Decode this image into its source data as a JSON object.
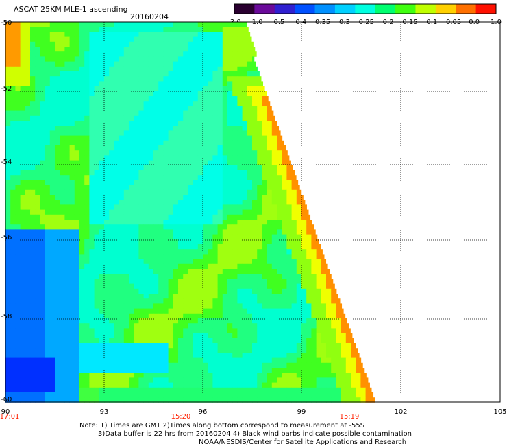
{
  "header": {
    "title": "ASCAT 25KM MLE-1 ascending",
    "date": "20160204"
  },
  "colorbar": {
    "labels": [
      "-3.0",
      "-1.0",
      "-0.5",
      "-0.4",
      "-0.35",
      "-0.3",
      "-0.25",
      "-0.2",
      "-0.15",
      "-0.1",
      "-0.05",
      "0.0",
      "1.0"
    ],
    "colors": [
      "#2a0030",
      "#6a0a9a",
      "#3020d0",
      "#0050ff",
      "#0090ff",
      "#00d0ff",
      "#00ffe0",
      "#00ff70",
      "#40ff10",
      "#c0ff00",
      "#ffd000",
      "#ff7000",
      "#ff1000"
    ]
  },
  "axes": {
    "lat_labels": [
      "-50",
      "-52",
      "-54",
      "-56",
      "-58",
      "-60"
    ],
    "lon_labels": [
      "90",
      "93",
      "96",
      "99",
      "102",
      "105"
    ],
    "time_labels": [
      "17:01",
      "15:20",
      "15:19"
    ],
    "time_color": "#ff2000"
  },
  "notes": {
    "line1": "Note: 1) Times are GMT 2)Times along bottom correspond to measurement at -55S",
    "line2": "3)Data buffer is 22 hrs from 20160204 4) Black wind barbs indicate possible contamination",
    "line3": "NOAA/NESDIS/Center for Satellite Applications and Research"
  }
}
